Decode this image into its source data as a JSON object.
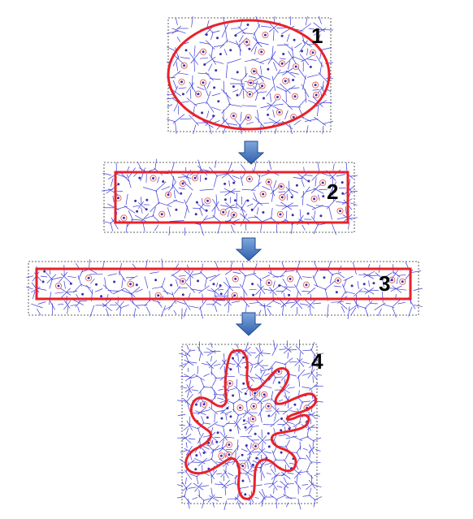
{
  "colors": {
    "boundary": "#e8212b",
    "voronoi": "#3b3bd6",
    "site_dot": "#3a2fa8",
    "site_ring": "#e0605a",
    "frame": "#333333",
    "arrow_top": "#7fa8dc",
    "arrow_bottom": "#2f5fae"
  },
  "panels": [
    {
      "label": "1",
      "shape": "ellipse"
    },
    {
      "label": "2",
      "shape": "rectangle"
    },
    {
      "label": "3",
      "shape": "thin-rectangle"
    },
    {
      "label": "4",
      "shape": "star-blob"
    }
  ],
  "arrows": [
    {
      "from": "1",
      "to": "2",
      "icon": "down-arrow-icon"
    },
    {
      "from": "2",
      "to": "3",
      "icon": "down-arrow-icon"
    },
    {
      "from": "3",
      "to": "4",
      "icon": "down-arrow-icon"
    }
  ]
}
